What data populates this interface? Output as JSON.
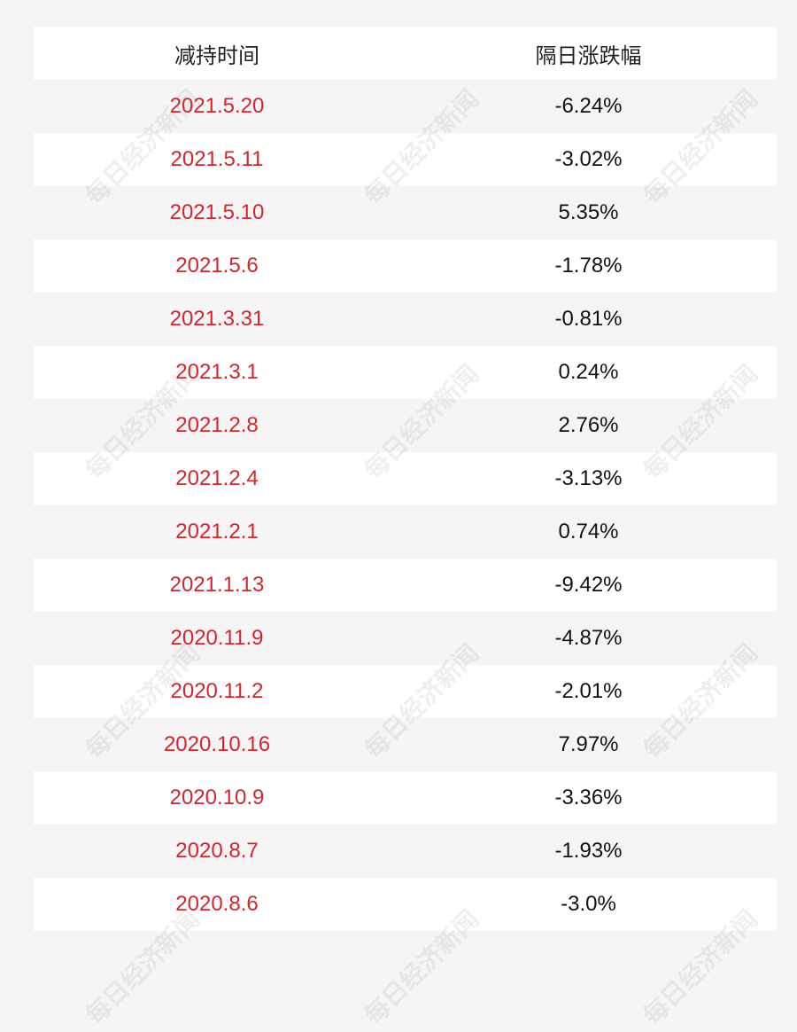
{
  "table": {
    "header": [
      "减持时间",
      "隔日涨跌幅"
    ],
    "rows": [
      [
        "2021.5.20",
        "-6.24%"
      ],
      [
        "2021.5.11",
        "-3.02%"
      ],
      [
        "2021.5.10",
        "5.35%"
      ],
      [
        "2021.5.6",
        "-1.78%"
      ],
      [
        "2021.3.31",
        "-0.81%"
      ],
      [
        "2021.3.1",
        "0.24%"
      ],
      [
        "2021.2.8",
        "2.76%"
      ],
      [
        "2021.2.4",
        "-3.13%"
      ],
      [
        "2021.2.1",
        "0.74%"
      ],
      [
        "2021.1.13",
        "-9.42%"
      ],
      [
        "2020.11.9",
        "-4.87%"
      ],
      [
        "2020.11.2",
        "-2.01%"
      ],
      [
        "2020.10.16",
        "7.97%"
      ],
      [
        "2020.10.9",
        "-3.36%"
      ],
      [
        "2020.8.7",
        "-1.93%"
      ],
      [
        "2020.8.6",
        "-3.0%"
      ]
    ]
  },
  "watermark": "每日经济新闻"
}
